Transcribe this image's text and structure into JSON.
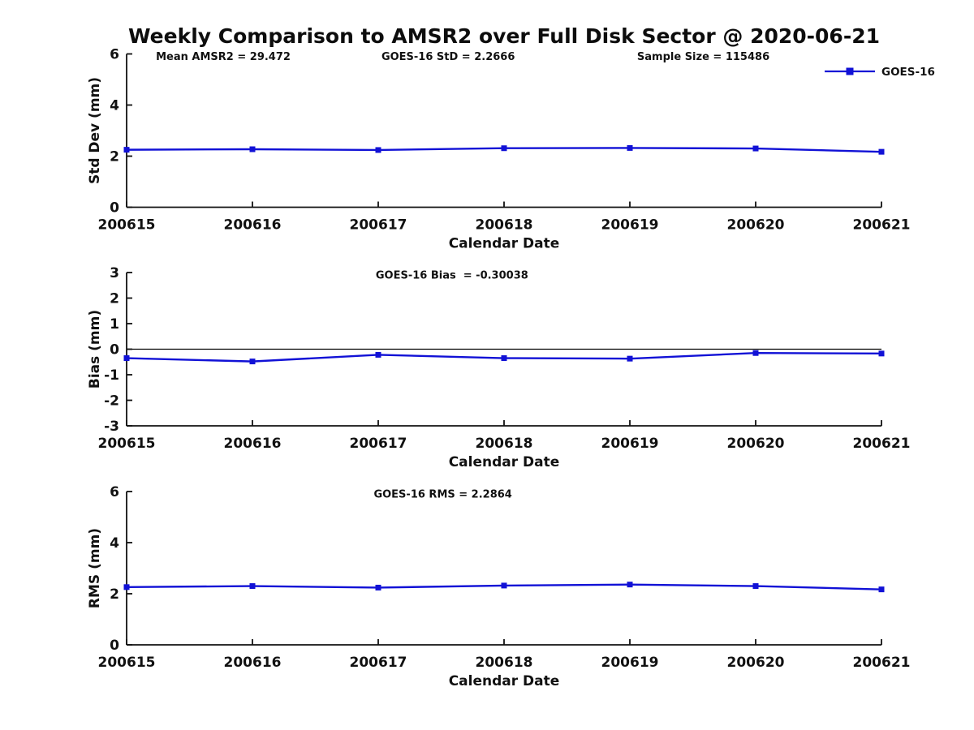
{
  "figure": {
    "title": "Weekly Comparison to AMSR2 over Full Disk Sector @ 2020-06-21",
    "background_color": "#ffffff",
    "axis_color": "#111111",
    "line_color": "#1111d6",
    "marker_shape": "square",
    "legend_label": "GOES-16"
  },
  "chart_data": [
    {
      "type": "line",
      "id": "std-dev",
      "title_annotations": [
        "Mean AMSR2 = 29.472",
        "GOES-16 StD = 2.2666",
        "Sample Size = 115486"
      ],
      "ylabel": "Std Dev (mm)",
      "xlabel": "Calendar Date",
      "categories": [
        "200615",
        "200616",
        "200617",
        "200618",
        "200619",
        "200620",
        "200621"
      ],
      "series": [
        {
          "name": "GOES-16",
          "values": [
            2.25,
            2.27,
            2.24,
            2.31,
            2.32,
            2.3,
            2.17
          ]
        }
      ],
      "ylim": [
        0,
        6
      ],
      "yticks": [
        0,
        2,
        4,
        6
      ],
      "grid": false,
      "legend": {
        "label": "GOES-16",
        "position": "top-right"
      }
    },
    {
      "type": "line",
      "id": "bias",
      "title_annotations": [
        "GOES-16 Bias  = -0.30038"
      ],
      "ylabel": "Bias (mm)",
      "xlabel": "Calendar Date",
      "categories": [
        "200615",
        "200616",
        "200617",
        "200618",
        "200619",
        "200620",
        "200621"
      ],
      "series": [
        {
          "name": "GOES-16",
          "values": [
            -0.35,
            -0.48,
            -0.22,
            -0.35,
            -0.37,
            -0.15,
            -0.17
          ]
        }
      ],
      "ylim": [
        -3,
        3
      ],
      "yticks": [
        -3,
        -2,
        -1,
        0,
        1,
        2,
        3
      ],
      "zero_line": true,
      "grid": false,
      "legend": null
    },
    {
      "type": "line",
      "id": "rms",
      "title_annotations": [
        "GOES-16 RMS = 2.2864"
      ],
      "ylabel": "RMS (mm)",
      "xlabel": "Calendar Date",
      "categories": [
        "200615",
        "200616",
        "200617",
        "200618",
        "200619",
        "200620",
        "200621"
      ],
      "series": [
        {
          "name": "GOES-16",
          "values": [
            2.26,
            2.3,
            2.24,
            2.32,
            2.36,
            2.3,
            2.17
          ]
        }
      ],
      "ylim": [
        0,
        6
      ],
      "yticks": [
        0,
        2,
        4,
        6
      ],
      "grid": false,
      "legend": null
    }
  ]
}
